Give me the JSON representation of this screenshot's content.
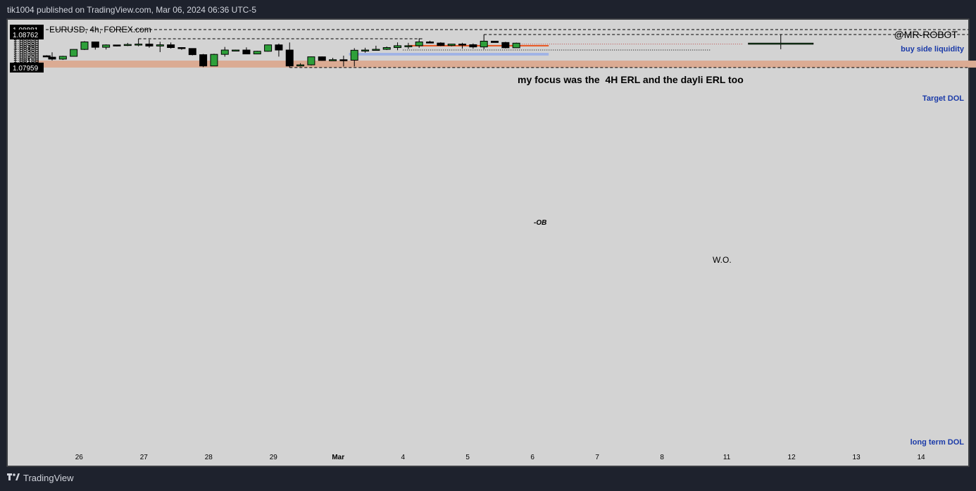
{
  "header": {
    "published": "tik1004 published on TradingView.com, Mar 06, 2024 06:36 UTC-5"
  },
  "footer": {
    "brand_logo": "TradingView",
    "brand_icon": "tradingview-logo-icon"
  },
  "colors": {
    "up": "#2ea03a",
    "down": "#000000",
    "background": "#d3d3d3",
    "discount_zone": "#dbab93",
    "fvg_zone": "#9eb2e6",
    "ob_line": "#e8541e",
    "label_blue": "#1a3aa8"
  },
  "chart_data": {
    "type": "candlestick",
    "symbol_label": "EURUSD, 4h, FOREX.com",
    "watermark": "@MR-ROBOT",
    "annotation": "my focus was the  4H ERL and the dayli ERL too",
    "ylim": [
      1.0795,
      1.0896
    ],
    "y_ticks": [
      "1.08950",
      "1.08900",
      "1.08850",
      "1.08800",
      "1.08750",
      "1.08700",
      "1.08650",
      "1.08600",
      "1.08550",
      "1.08500",
      "1.08450",
      "1.08400",
      "1.08350",
      "1.08300",
      "1.08250",
      "1.08200",
      "1.08150",
      "1.08100",
      "1.08050",
      "1.08000",
      "1.07950"
    ],
    "x_ticks": [
      {
        "label": "26",
        "bar": 2.5
      },
      {
        "label": "27",
        "bar": 8.5
      },
      {
        "label": "28",
        "bar": 14.5
      },
      {
        "label": "29",
        "bar": 20.5
      },
      {
        "label": "Mar",
        "bar": 26.5
      },
      {
        "label": "4",
        "bar": 32.5
      },
      {
        "label": "5",
        "bar": 38.5
      },
      {
        "label": "6",
        "bar": 44.5
      },
      {
        "label": "7",
        "bar": 50.5
      },
      {
        "label": "8",
        "bar": 56.5
      },
      {
        "label": "11",
        "bar": 62.5
      },
      {
        "label": "12",
        "bar": 68.5
      },
      {
        "label": "13",
        "bar": 74.5
      },
      {
        "label": "14",
        "bar": 80.5
      }
    ],
    "price_labels": [
      {
        "text": "1.08881",
        "price": 1.08881
      },
      {
        "text": "1.08762",
        "price": 1.08762
      },
      {
        "text": "1.07959",
        "price": 1.07959
      }
    ],
    "candles": [
      [
        -0.5,
        1.08245,
        1.0826,
        1.08215,
        1.08218
      ],
      [
        0,
        1.08212,
        1.0833,
        1.0813,
        1.08165
      ],
      [
        1,
        1.08165,
        1.08245,
        1.08145,
        1.08232
      ],
      [
        2,
        1.08232,
        1.08405,
        1.08225,
        1.084
      ],
      [
        3,
        1.084,
        1.086,
        1.08385,
        1.08582
      ],
      [
        4,
        1.08582,
        1.0859,
        1.08395,
        1.08452
      ],
      [
        5,
        1.08452,
        1.08522,
        1.08398,
        1.08508
      ],
      [
        6,
        1.08508,
        1.08512,
        1.08472,
        1.08502
      ],
      [
        7,
        1.08502,
        1.08558,
        1.0848,
        1.0852
      ],
      [
        8,
        1.0852,
        1.08662,
        1.08475,
        1.0853
      ],
      [
        9,
        1.0853,
        1.0864,
        1.0844,
        1.08482
      ],
      [
        10,
        1.08482,
        1.08585,
        1.08335,
        1.08512
      ],
      [
        11,
        1.08512,
        1.08568,
        1.0842,
        1.08445
      ],
      [
        12,
        1.08445,
        1.08455,
        1.0839,
        1.08422
      ],
      [
        13,
        1.08422,
        1.08428,
        1.08255,
        1.08272
      ],
      [
        14,
        1.08272,
        1.0829,
        1.0797,
        1.07998
      ],
      [
        15,
        1.07998,
        1.08295,
        1.07998,
        1.0828
      ],
      [
        16,
        1.0828,
        1.0846,
        1.08225,
        1.08385
      ],
      [
        17,
        1.08385,
        1.08395,
        1.08385,
        1.08385
      ],
      [
        18,
        1.08385,
        1.0845,
        1.08285,
        1.0829
      ],
      [
        19,
        1.0829,
        1.08365,
        1.08285,
        1.08355
      ],
      [
        20,
        1.08355,
        1.08518,
        1.08345,
        1.0851
      ],
      [
        21,
        1.0851,
        1.08542,
        1.08225,
        1.08385
      ],
      [
        22,
        1.08385,
        1.08568,
        1.0796,
        1.07998
      ],
      [
        23,
        1.07998,
        1.08065,
        1.07985,
        1.08025
      ],
      [
        24,
        1.08025,
        1.08228,
        1.0801,
        1.0822
      ],
      [
        25,
        1.0822,
        1.08228,
        1.08125,
        1.08132
      ],
      [
        26,
        1.08132,
        1.08195,
        1.08125,
        1.0815
      ],
      [
        27,
        1.0815,
        1.08248,
        1.07985,
        1.08138
      ],
      [
        28,
        1.08138,
        1.0843,
        1.07985,
        1.0838
      ],
      [
        29,
        1.0838,
        1.0844,
        1.0832,
        1.08385
      ],
      [
        30,
        1.08385,
        1.0849,
        1.08385,
        1.08402
      ],
      [
        31,
        1.08402,
        1.0847,
        1.08385,
        1.08445
      ],
      [
        32,
        1.08445,
        1.0857,
        1.0838,
        1.0849
      ],
      [
        33,
        1.0849,
        1.0856,
        1.0841,
        1.0849
      ],
      [
        34,
        1.0849,
        1.0867,
        1.0844,
        1.08582
      ],
      [
        35,
        1.08582,
        1.0861,
        1.08548,
        1.08555
      ],
      [
        36,
        1.08555,
        1.08575,
        1.0848,
        1.08495
      ],
      [
        37,
        1.08495,
        1.08535,
        1.08475,
        1.0853
      ],
      [
        38,
        1.0853,
        1.0856,
        1.0842,
        1.08515
      ],
      [
        39,
        1.08515,
        1.08545,
        1.0842,
        1.0846
      ],
      [
        40,
        1.0846,
        1.08762,
        1.08405,
        1.086
      ],
      [
        41,
        1.086,
        1.08602,
        1.08568,
        1.08568
      ],
      [
        42,
        1.08568,
        1.08585,
        1.08425,
        1.0844
      ],
      [
        43,
        1.0844,
        1.08565,
        1.0844,
        1.08552
      ],
      [
        67.5,
        1.0853,
        1.08762,
        1.08405,
        1.08552
      ]
    ],
    "levels": [
      {
        "name": "buy side liquidity",
        "price": 1.08881,
        "from_bar": -1.5,
        "to_bar": 86.5,
        "style": "dashed"
      },
      {
        "name": "Target DOL",
        "price": 1.08762,
        "from_bar": 40,
        "to_bar": 86.5,
        "style": "dashed"
      },
      {
        "name": "long term DOL",
        "price": 1.07959,
        "from_bar": 22,
        "to_bar": 86.5,
        "style": "dashed"
      },
      {
        "name": "",
        "price": 1.0866,
        "from_bar": 8,
        "to_bar": 34.3,
        "style": "dashed"
      },
      {
        "name": "W.O.",
        "price": 1.08385,
        "from_bar": 32.5,
        "to_bar": 61,
        "style": "dotted"
      },
      {
        "name": "",
        "price": 1.0853,
        "from_bar": 43.5,
        "to_bar": 64,
        "style": "dotted-red"
      },
      {
        "name": "-OB",
        "price": 1.0849,
        "from_bar": 33,
        "to_bar": 46,
        "style": "solid-orange"
      }
    ],
    "zones": [
      {
        "name": "discount",
        "from_bar": -1.5,
        "to_bar": 86.5,
        "top": 1.08128,
        "bottom": 1.07959,
        "color": "#dbab93"
      },
      {
        "name": "fvg",
        "from_bar": 27.5,
        "to_bar": 46,
        "top": 1.08315,
        "bottom": 1.08252,
        "color": "#9eb2e6"
      }
    ],
    "labels": {
      "buy_side": "buy side liquidity",
      "target": "Target DOL",
      "long_term": "long term DOL",
      "ob": "-OB",
      "wo": "W.O."
    },
    "grid": false,
    "legend": "none"
  }
}
